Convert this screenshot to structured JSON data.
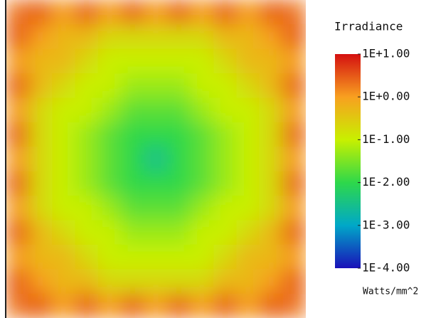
{
  "chart_data": {
    "type": "heatmap",
    "title": "Irradiance",
    "colorbar_label": "Watts/mm^2",
    "log_scale": true,
    "clim": [
      0.0001,
      10
    ],
    "colormap": [
      "#1a10b8",
      "#00a8c8",
      "#2ed84a",
      "#c8f000",
      "#f8a020",
      "#d41010"
    ],
    "ticks": [
      {
        "value": 10,
        "label": "1E+1.00"
      },
      {
        "value": 1,
        "label": "1E+0.00"
      },
      {
        "value": 0.1,
        "label": "1E-1.00"
      },
      {
        "value": 0.01,
        "label": "1E-2.00"
      },
      {
        "value": 0.001,
        "label": "1E-3.00"
      },
      {
        "value": 0.0001,
        "label": "1E-4.00"
      }
    ],
    "z": [
      [
        2,
        3,
        1,
        3,
        1,
        3,
        1,
        3,
        1,
        3,
        1,
        3,
        2
      ],
      [
        3,
        1,
        0.5,
        0.5,
        0.2,
        0.2,
        0.2,
        0.2,
        0.2,
        0.5,
        0.5,
        1,
        3
      ],
      [
        1,
        0.5,
        0.5,
        0.2,
        0.1,
        0.1,
        0.1,
        0.1,
        0.1,
        0.2,
        0.5,
        0.5,
        1
      ],
      [
        3,
        0.5,
        0.2,
        0.1,
        0.1,
        0.05,
        0.05,
        0.05,
        0.1,
        0.1,
        0.2,
        0.5,
        3
      ],
      [
        1,
        0.2,
        0.1,
        0.1,
        0.05,
        0.02,
        0.02,
        0.02,
        0.05,
        0.1,
        0.1,
        0.2,
        1
      ],
      [
        3,
        0.2,
        0.1,
        0.05,
        0.02,
        0.01,
        0.01,
        0.01,
        0.02,
        0.05,
        0.1,
        0.2,
        3
      ],
      [
        1,
        0.2,
        0.1,
        0.05,
        0.02,
        0.01,
        0.003,
        0.01,
        0.02,
        0.05,
        0.1,
        0.2,
        1
      ],
      [
        3,
        0.2,
        0.1,
        0.05,
        0.02,
        0.01,
        0.01,
        0.01,
        0.02,
        0.05,
        0.1,
        0.2,
        3
      ],
      [
        1,
        0.2,
        0.1,
        0.1,
        0.05,
        0.02,
        0.02,
        0.02,
        0.05,
        0.1,
        0.1,
        0.2,
        1
      ],
      [
        3,
        0.5,
        0.2,
        0.1,
        0.1,
        0.05,
        0.05,
        0.05,
        0.1,
        0.1,
        0.2,
        0.5,
        3
      ],
      [
        1,
        0.5,
        0.5,
        0.2,
        0.1,
        0.1,
        0.1,
        0.1,
        0.1,
        0.2,
        0.5,
        0.5,
        1
      ],
      [
        3,
        1,
        0.5,
        0.5,
        0.2,
        0.2,
        0.2,
        0.2,
        0.2,
        0.5,
        0.5,
        1,
        3
      ],
      [
        2,
        3,
        1,
        3,
        1,
        3,
        1,
        3,
        1,
        3,
        1,
        3,
        2
      ]
    ]
  }
}
